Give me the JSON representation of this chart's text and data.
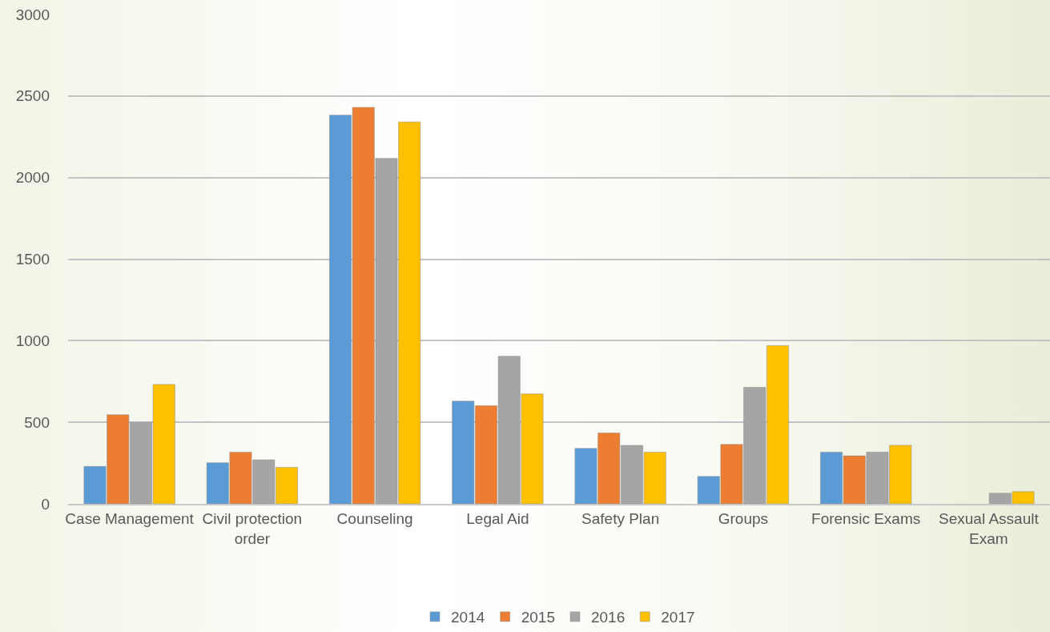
{
  "chart_data": {
    "type": "bar",
    "categories": [
      "Case Management",
      "Civil protection order",
      "Counseling",
      "Legal Aid",
      "Safety Plan",
      "Groups",
      "Forensic Exams",
      "Sexual Assault Exam"
    ],
    "series": [
      {
        "name": "2014",
        "color": "#5b9bd5",
        "values": [
          229,
          252,
          2383,
          630,
          340,
          168,
          317,
          null
        ]
      },
      {
        "name": "2015",
        "color": "#ed7d31",
        "values": [
          546,
          317,
          2430,
          602,
          434,
          364,
          294,
          null
        ]
      },
      {
        "name": "2016",
        "color": "#a5a5a5",
        "values": [
          500,
          270,
          2118,
          905,
          359,
          714,
          317,
          65
        ]
      },
      {
        "name": "2017",
        "color": "#ffc000",
        "values": [
          732,
          224,
          2341,
          674,
          317,
          970,
          359,
          75
        ]
      }
    ],
    "ylim": [
      0,
      3000
    ],
    "yticks": [
      0,
      500,
      1000,
      1500,
      2000,
      2500,
      3000
    ],
    "grid": "y",
    "legend": "bottom"
  }
}
